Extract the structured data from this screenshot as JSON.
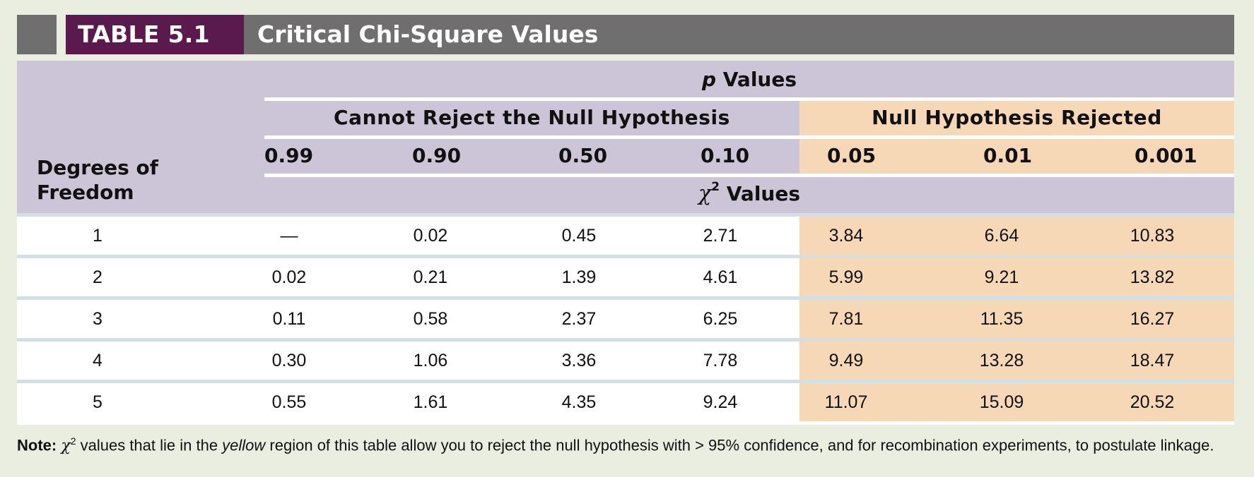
{
  "title_bar": {
    "table_label": "TABLE 5.1",
    "title": "Critical Chi-Square Values",
    "colors": {
      "bar": "#6f6f6f",
      "label_bg": "#5a1a4d"
    }
  },
  "header": {
    "p_values_italic": "p",
    "p_values_rest": " Values",
    "cannot_reject": "Cannot Reject the Null Hypothesis",
    "rejected": "Null Hypothesis Rejected",
    "p_columns": [
      "0.99",
      "0.90",
      "0.50",
      "0.10",
      "0.05",
      "0.01",
      "0.001"
    ],
    "chi_symbol": "χ",
    "chi_exp": "2",
    "chi_rest": " Values",
    "degrees_of_freedom": "Degrees of Freedom",
    "colors": {
      "header_bg": "#ccc4d7",
      "rejected_bg": "#f6d8b6"
    }
  },
  "rows": [
    {
      "df": "1",
      "values": [
        "—",
        "0.02",
        "0.45",
        "2.71",
        "3.84",
        "6.64",
        "10.83"
      ]
    },
    {
      "df": "2",
      "values": [
        "0.02",
        "0.21",
        "1.39",
        "4.61",
        "5.99",
        "9.21",
        "13.82"
      ]
    },
    {
      "df": "3",
      "values": [
        "0.11",
        "0.58",
        "2.37",
        "6.25",
        "7.81",
        "11.35",
        "16.27"
      ]
    },
    {
      "df": "4",
      "values": [
        "0.30",
        "1.06",
        "3.36",
        "7.78",
        "9.49",
        "13.28",
        "18.47"
      ]
    },
    {
      "df": "5",
      "values": [
        "0.55",
        "1.61",
        "4.35",
        "9.24",
        "11.07",
        "15.09",
        "20.52"
      ]
    }
  ],
  "note": {
    "label": "Note:",
    "chi_symbol": "χ",
    "chi_exp": "2",
    "part1": " values that lie in the ",
    "emphasis": "yellow",
    "part2": " region of this table allow you to reject the null hypothesis with > 95% confidence, and for recombination experiments, to postulate linkage."
  }
}
